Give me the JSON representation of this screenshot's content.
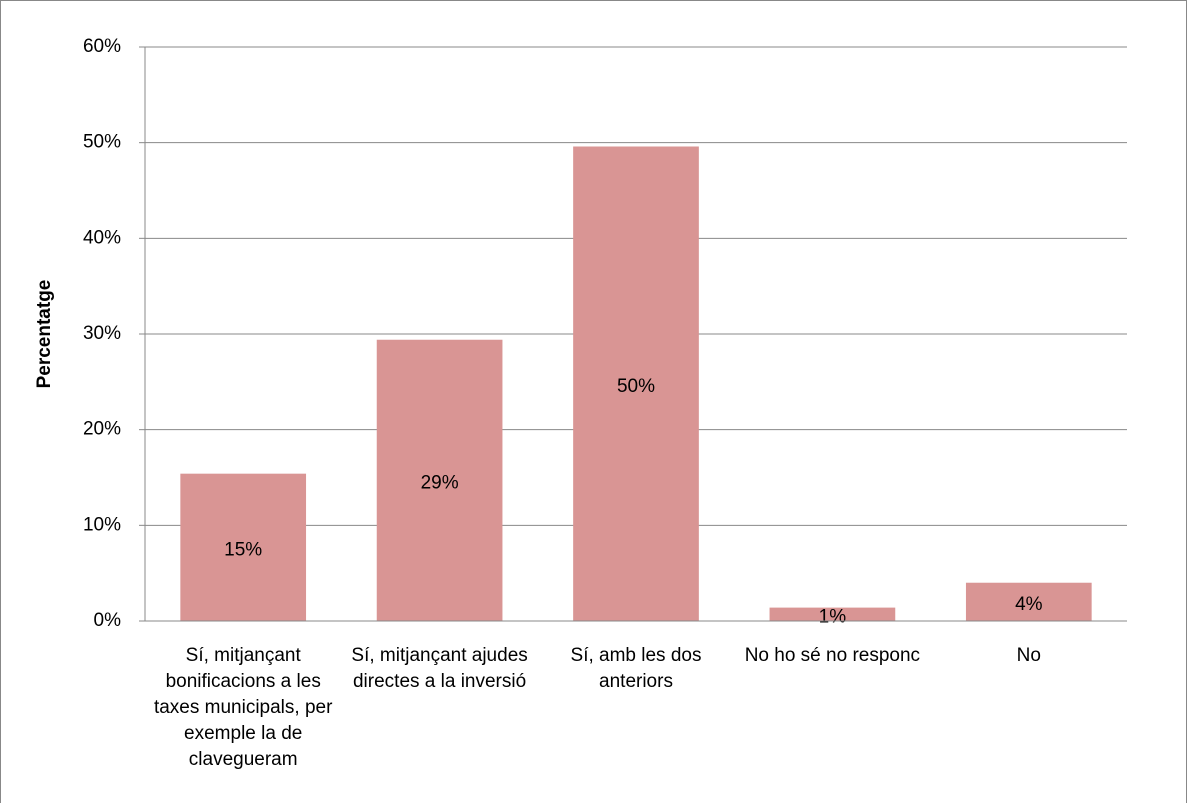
{
  "chart_data": {
    "type": "bar",
    "y_axis_label": "Percentatge",
    "categories": [
      "Sí, mitjançant bonificacions a les taxes municipals, per exemple la de clavegueram",
      "Sí, mitjançant ajudes directes a la inversió",
      "Sí, amb les dos anteriors",
      "No ho sé no responc",
      "No"
    ],
    "values": [
      15.4,
      29.4,
      49.6,
      1.4,
      4.0
    ],
    "value_labels": [
      "15%",
      "29%",
      "50%",
      "1%",
      "4%"
    ],
    "color": "#d99594",
    "ylim": [
      0,
      60
    ],
    "yticks": [
      {
        "value": 0,
        "label": "0%"
      },
      {
        "value": 10,
        "label": "10%"
      },
      {
        "value": 20,
        "label": "20%"
      },
      {
        "value": 30,
        "label": "30%"
      },
      {
        "value": 40,
        "label": "40%"
      },
      {
        "value": 50,
        "label": "50%"
      },
      {
        "value": 60,
        "label": "60%"
      }
    ],
    "grid": true
  }
}
